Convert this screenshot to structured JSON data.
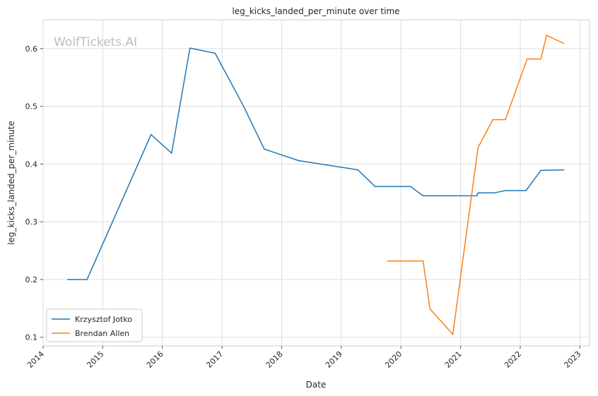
{
  "chart_data": {
    "type": "line",
    "title": "leg_kicks_landed_per_minute over time",
    "xlabel": "Date",
    "ylabel": "leg_kicks_landed_per_minute",
    "watermark": "WolfTickets.AI",
    "xlim": [
      "2014-01-01",
      "2023-03-01"
    ],
    "ylim": [
      0.085,
      0.65
    ],
    "x_ticks": [
      "2014",
      "2015",
      "2016",
      "2017",
      "2018",
      "2019",
      "2020",
      "2021",
      "2022",
      "2023"
    ],
    "y_ticks": [
      "0.1",
      "0.2",
      "0.3",
      "0.4",
      "0.5",
      "0.6"
    ],
    "grid": true,
    "legend_position": "lower-left",
    "series": [
      {
        "name": "Krzysztof Jotko",
        "color": "#1f77b4",
        "points": [
          [
            "2014-05-31",
            0.2
          ],
          [
            "2014-09-27",
            0.2
          ],
          [
            "2015-10-24",
            0.451
          ],
          [
            "2016-02-27",
            0.419
          ],
          [
            "2016-06-18",
            0.601
          ],
          [
            "2016-11-19",
            0.592
          ],
          [
            "2017-05-13",
            0.5
          ],
          [
            "2017-09-16",
            0.426
          ],
          [
            "2018-04-14",
            0.406
          ],
          [
            "2019-04-13",
            0.39
          ],
          [
            "2019-07-27",
            0.361
          ],
          [
            "2020-02-29",
            0.361
          ],
          [
            "2020-05-16",
            0.345
          ],
          [
            "2021-04-10",
            0.345
          ],
          [
            "2021-04-17",
            0.35
          ],
          [
            "2021-07-24",
            0.35
          ],
          [
            "2021-10-02",
            0.354
          ],
          [
            "2022-02-05",
            0.354
          ],
          [
            "2022-05-07",
            0.389
          ],
          [
            "2022-09-24",
            0.39
          ]
        ]
      },
      {
        "name": "Brendan Allen",
        "color": "#ff7f0e",
        "points": [
          [
            "2019-10-12",
            0.232
          ],
          [
            "2020-05-16",
            0.232
          ],
          [
            "2020-06-27",
            0.149
          ],
          [
            "2020-11-14",
            0.105
          ],
          [
            "2021-04-17",
            0.428
          ],
          [
            "2021-04-24",
            0.432
          ],
          [
            "2021-07-17",
            0.477
          ],
          [
            "2021-10-02",
            0.477
          ],
          [
            "2022-02-12",
            0.582
          ],
          [
            "2022-05-07",
            0.582
          ],
          [
            "2022-06-11",
            0.623
          ],
          [
            "2022-09-24",
            0.609
          ]
        ]
      }
    ]
  }
}
